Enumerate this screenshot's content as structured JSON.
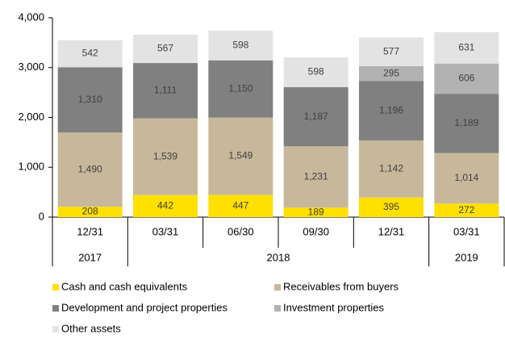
{
  "chart_data": {
    "type": "stacked_bar",
    "categories": [
      "12/31",
      "03/31",
      "06/30",
      "09/30",
      "12/31",
      "03/31"
    ],
    "years": [
      "2017",
      "2018",
      "2018",
      "2018",
      "2018",
      "2019"
    ],
    "series": [
      {
        "name": "Cash and cash equivalents",
        "color": "#FFE000",
        "values": [
          208,
          442,
          447,
          189,
          395,
          272
        ],
        "value_labels": [
          "208",
          "442",
          "447",
          "189",
          "395",
          "272"
        ]
      },
      {
        "name": "Receivables from buyers",
        "color": "#C8B89B",
        "values": [
          1490,
          1539,
          1549,
          1231,
          1142,
          1014
        ],
        "value_labels": [
          "1,490",
          "1,539",
          "1,549",
          "1,231",
          "1,142",
          "1,014"
        ]
      },
      {
        "name": "Development and project properties",
        "color": "#808080",
        "values": [
          1310,
          1111,
          1150,
          1187,
          1196,
          1189
        ],
        "value_labels": [
          "1,310",
          "1,111",
          "1,150",
          "1,187",
          "1,196",
          "1,189"
        ]
      },
      {
        "name": "Investment properties",
        "color": "#B2B2B2",
        "values": [
          null,
          null,
          null,
          null,
          295,
          606
        ],
        "value_labels": [
          null,
          null,
          null,
          null,
          "295",
          "606"
        ]
      },
      {
        "name": "Other assets",
        "color": "#E3E3E3",
        "values": [
          542,
          567,
          598,
          598,
          577,
          631
        ],
        "value_labels": [
          "542",
          "567",
          "598",
          "598",
          "577",
          "631"
        ]
      }
    ],
    "ylim": [
      0,
      4000
    ],
    "yticks": [
      0,
      {
        "value": 1000,
        "label": "1,000"
      },
      {
        "value": 2000,
        "label": "2,000"
      },
      {
        "value": 3000,
        "label": "3,000"
      },
      {
        "value": 4000,
        "label": "4,000"
      }
    ],
    "grid": false
  }
}
